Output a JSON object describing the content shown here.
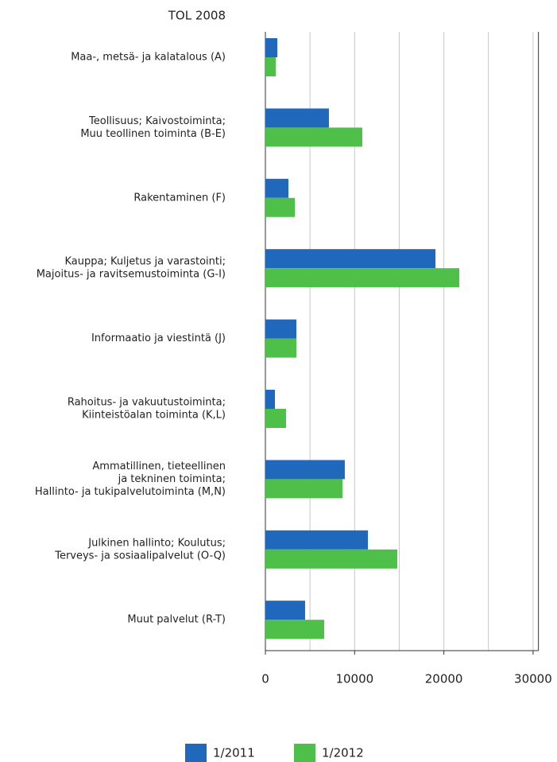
{
  "chart_data": {
    "type": "hbar",
    "axis_title": "TOL 2008",
    "categories": [
      [
        "Maa-, metsä- ja kalatalous (A)"
      ],
      [
        "Teollisuus; Kaivostoiminta;",
        "Muu teollinen toiminta (B-E)"
      ],
      [
        "Rakentaminen (F)"
      ],
      [
        "Kauppa; Kuljetus ja varastointi;",
        "Majoitus- ja ravitsemustoiminta (G-I)"
      ],
      [
        "Informaatio ja viestintä (J)"
      ],
      [
        "Rahoitus- ja vakuutustoiminta;",
        "Kiinteistöalan toiminta (K,L)"
      ],
      [
        "Ammatillinen, tieteellinen",
        "ja tekninen toiminta;",
        "Hallinto- ja tukipalvelutoiminta (M,N)"
      ],
      [
        "Julkinen hallinto; Koulutus;",
        "Terveys- ja sosiaalipalvelut (O-Q)"
      ],
      [
        "Muut palvelut (R-T)"
      ]
    ],
    "series": [
      {
        "name": "1/2011",
        "color": "#1f68bb",
        "values": [
          1340,
          7120,
          2580,
          19060,
          3470,
          1070,
          8900,
          11490,
          4450
        ]
      },
      {
        "name": "1/2012",
        "color": "#4ec04a",
        "values": [
          1160,
          10860,
          3300,
          21730,
          3470,
          2320,
          8640,
          14780,
          6590
        ]
      }
    ],
    "xlim": [
      0,
      30600
    ],
    "xticks": [
      0,
      10000,
      20000,
      30000
    ],
    "xgrid": [
      5000,
      10000,
      15000,
      20000,
      25000,
      30000
    ],
    "grid": true,
    "legend": "bottom"
  }
}
